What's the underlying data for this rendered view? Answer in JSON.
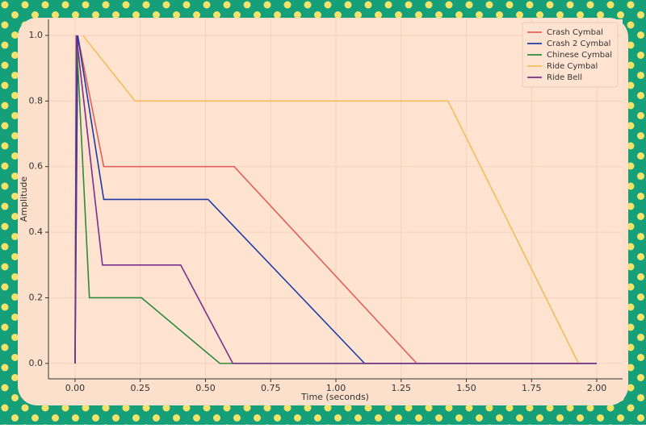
{
  "chart_data": {
    "type": "line",
    "xlabel": "Time (seconds)",
    "ylabel": "Amplitude",
    "xlim": [
      -0.102,
      2.099
    ],
    "ylim": [
      -0.047,
      1.049
    ],
    "xticks": [
      {
        "value": 0,
        "label": "0.00"
      },
      {
        "value": 0.25,
        "label": "0.25"
      },
      {
        "value": 0.5,
        "label": "0.50"
      },
      {
        "value": 0.75,
        "label": "0.75"
      },
      {
        "value": 1,
        "label": "1.00"
      },
      {
        "value": 1.25,
        "label": "1.25"
      },
      {
        "value": 1.5,
        "label": "1.50"
      },
      {
        "value": 1.75,
        "label": "1.75"
      },
      {
        "value": 2,
        "label": "2.00"
      }
    ],
    "yticks": [
      {
        "value": 0,
        "label": "0.0"
      },
      {
        "value": 0.2,
        "label": "0.2"
      },
      {
        "value": 0.4,
        "label": "0.4"
      },
      {
        "value": 0.6,
        "label": "0.6"
      },
      {
        "value": 0.8,
        "label": "0.8"
      },
      {
        "value": 1,
        "label": "1.0"
      }
    ],
    "grid": true,
    "legend": "upper right",
    "series": [
      {
        "name": "Crash Cymbal",
        "color": "#e0605a",
        "x": [
          0,
          0.01,
          0.11,
          0.61,
          1.31,
          2.0
        ],
        "values": [
          0,
          1,
          0.6,
          0.6,
          0,
          0
        ]
      },
      {
        "name": "Crash 2 Cymbal",
        "color": "#1f3ba6",
        "x": [
          0,
          0.01,
          0.11,
          0.51,
          1.11,
          2.0
        ],
        "values": [
          0,
          1,
          0.5,
          0.5,
          0,
          0
        ]
      },
      {
        "name": "Chinese Cymbal",
        "color": "#2e8a3e",
        "x": [
          0,
          0.005,
          0.055,
          0.255,
          0.555,
          2.0
        ],
        "values": [
          0,
          1,
          0.2,
          0.2,
          0,
          0
        ]
      },
      {
        "name": "Ride Cymbal",
        "color": "#f2bd5c",
        "x": [
          0.03,
          0.23,
          1.43,
          1.93
        ],
        "values": [
          1,
          0.8,
          0.8,
          0
        ]
      },
      {
        "name": "Ride Bell",
        "color": "#7b2d8b",
        "x": [
          0,
          0.005,
          0.105,
          0.405,
          0.605,
          2.0
        ],
        "values": [
          0,
          1,
          0.3,
          0.3,
          0,
          0
        ]
      }
    ]
  }
}
